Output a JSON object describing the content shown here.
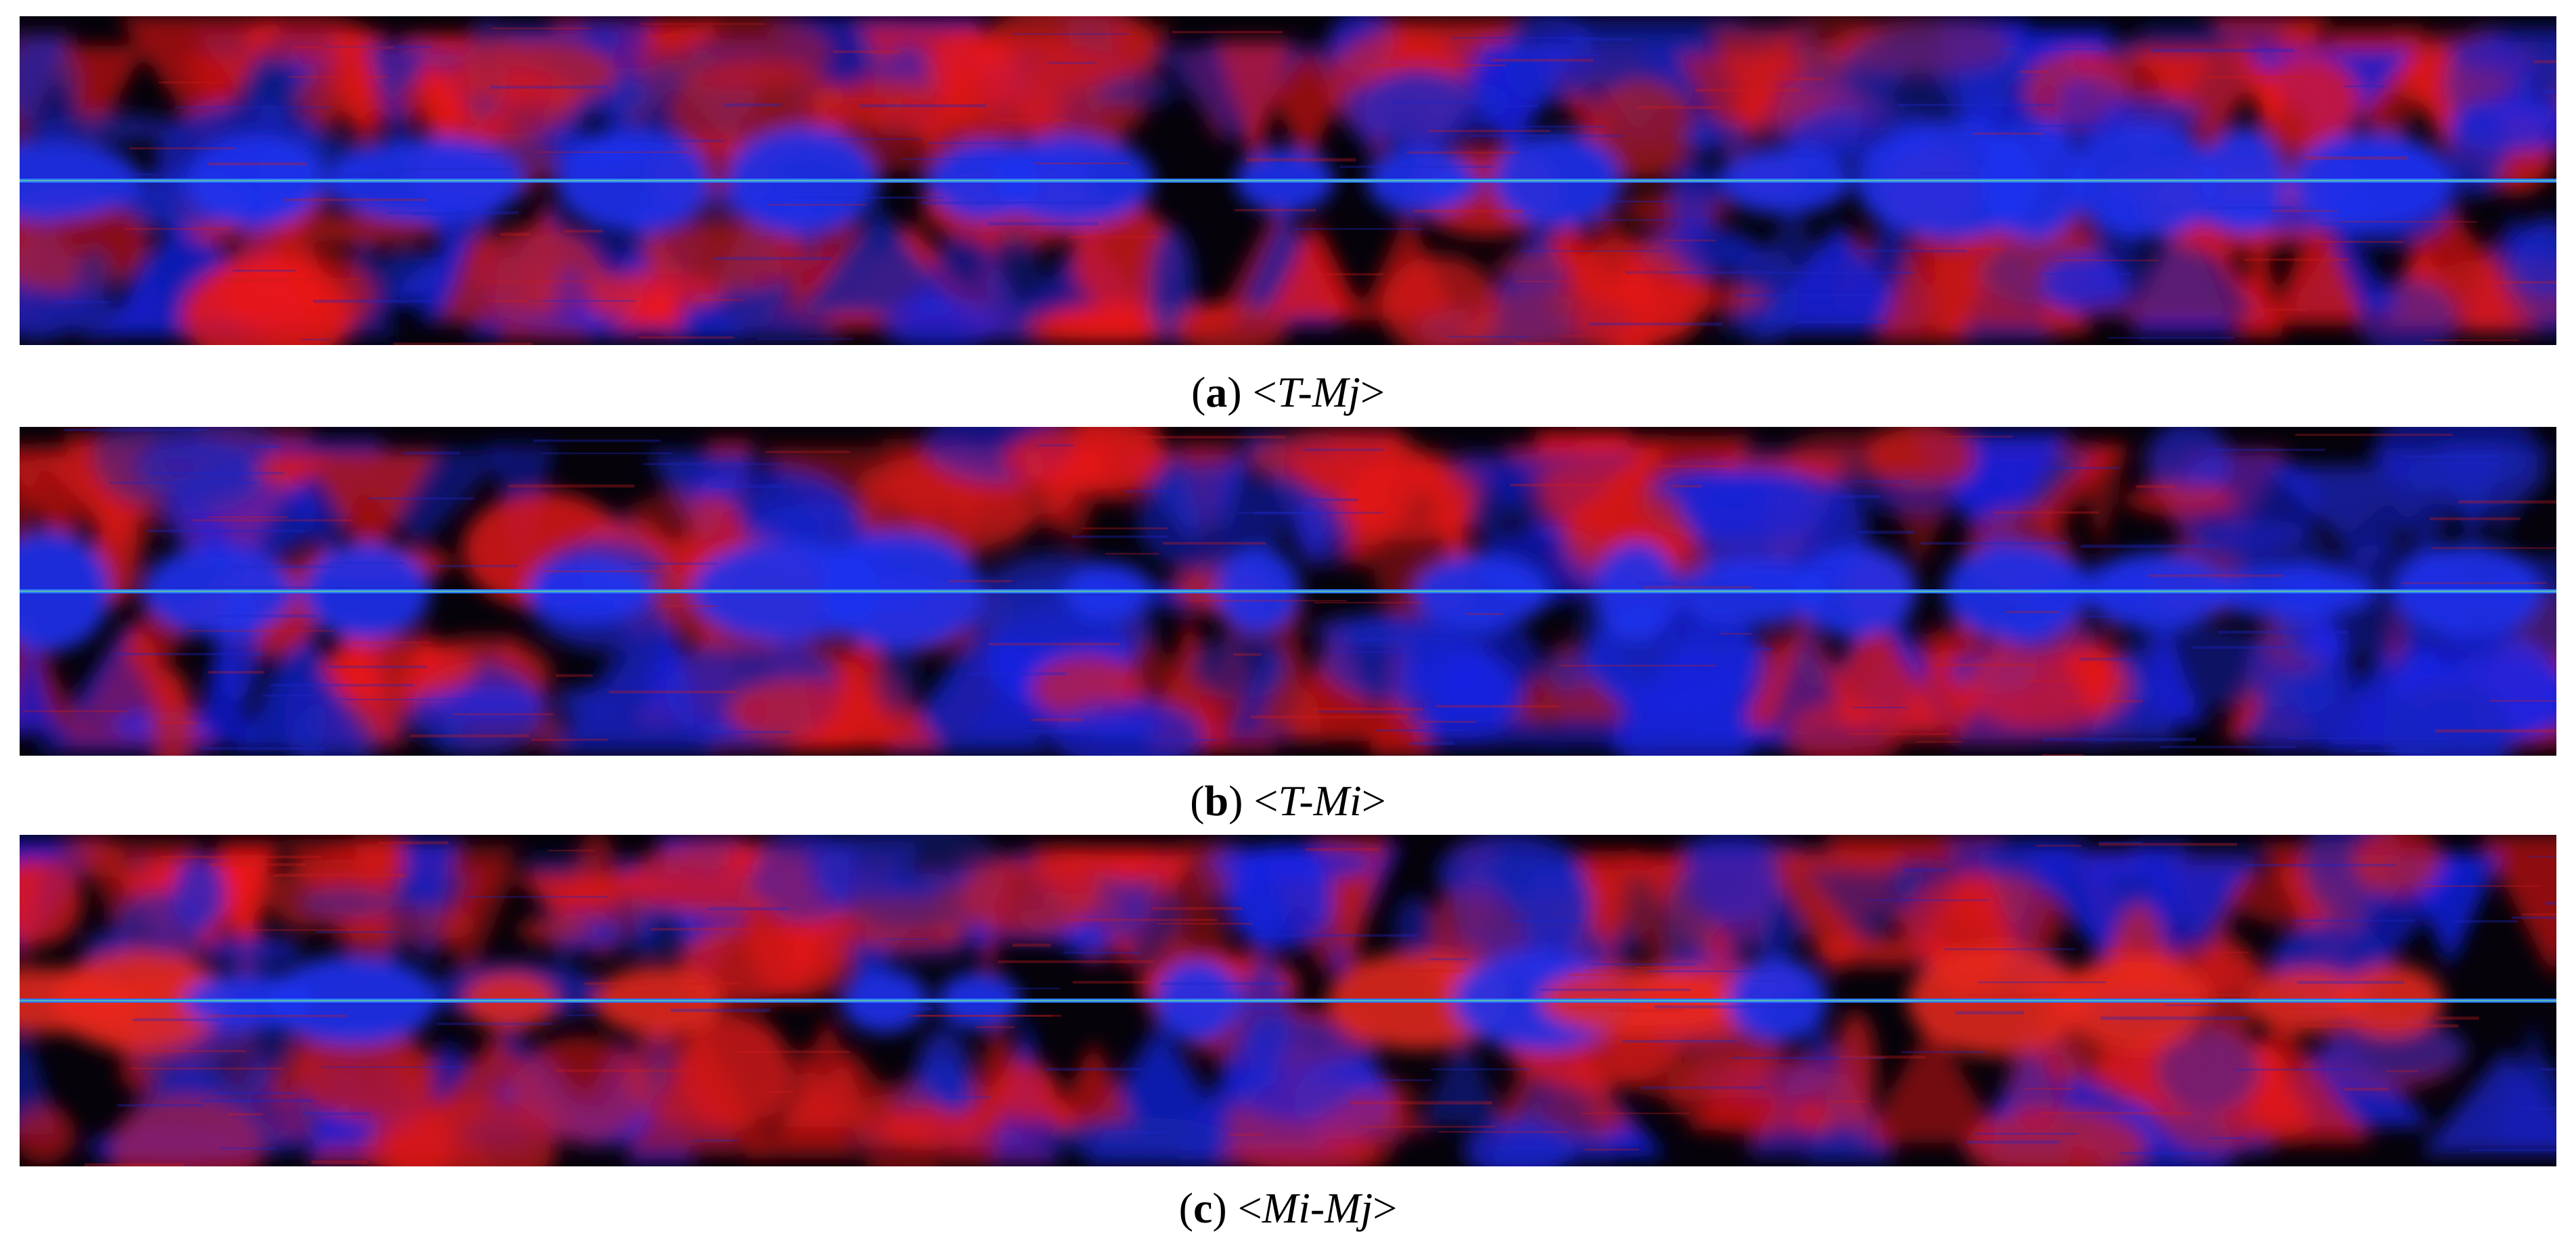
{
  "panels": [
    {
      "caption": [
        "(",
        "a",
        ") <",
        "T-Mj",
        ">"
      ]
    },
    {
      "caption": [
        "(",
        "b",
        ") <",
        "T-Mi",
        ">"
      ]
    },
    {
      "caption": [
        "(",
        "c",
        ") <",
        "Mi-Mj",
        ">"
      ]
    }
  ]
}
